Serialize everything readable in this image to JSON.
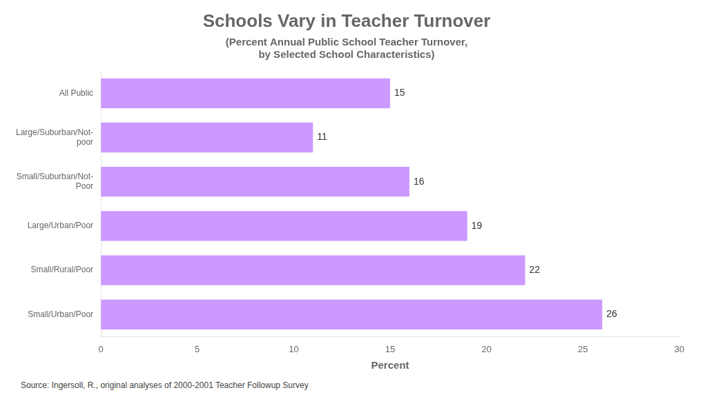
{
  "chart_data": {
    "type": "bar",
    "orientation": "horizontal",
    "title": "Schools Vary in Teacher Turnover",
    "subtitle": "(Percent Annual Public School Teacher Turnover,\nby Selected School Characteristics)",
    "categories": [
      "Small/Urban/Poor",
      "Small/Rural/Poor",
      "Large/Urban/Poor",
      "Small/Suburban/Not-\nPoor",
      "Large/Suburban/Not-\npoor",
      "All Public"
    ],
    "values": [
      26,
      22,
      19,
      16,
      11,
      15
    ],
    "color": "#cc99ff",
    "xlabel": "Percent",
    "xlim": [
      0,
      30
    ],
    "xticks": [
      0,
      5,
      10,
      15,
      20,
      25,
      30
    ],
    "grid": false,
    "data_labels": true,
    "source": "Source: Ingersoll, R., original analyses of 2000-2001 Teacher Followup Survey"
  }
}
